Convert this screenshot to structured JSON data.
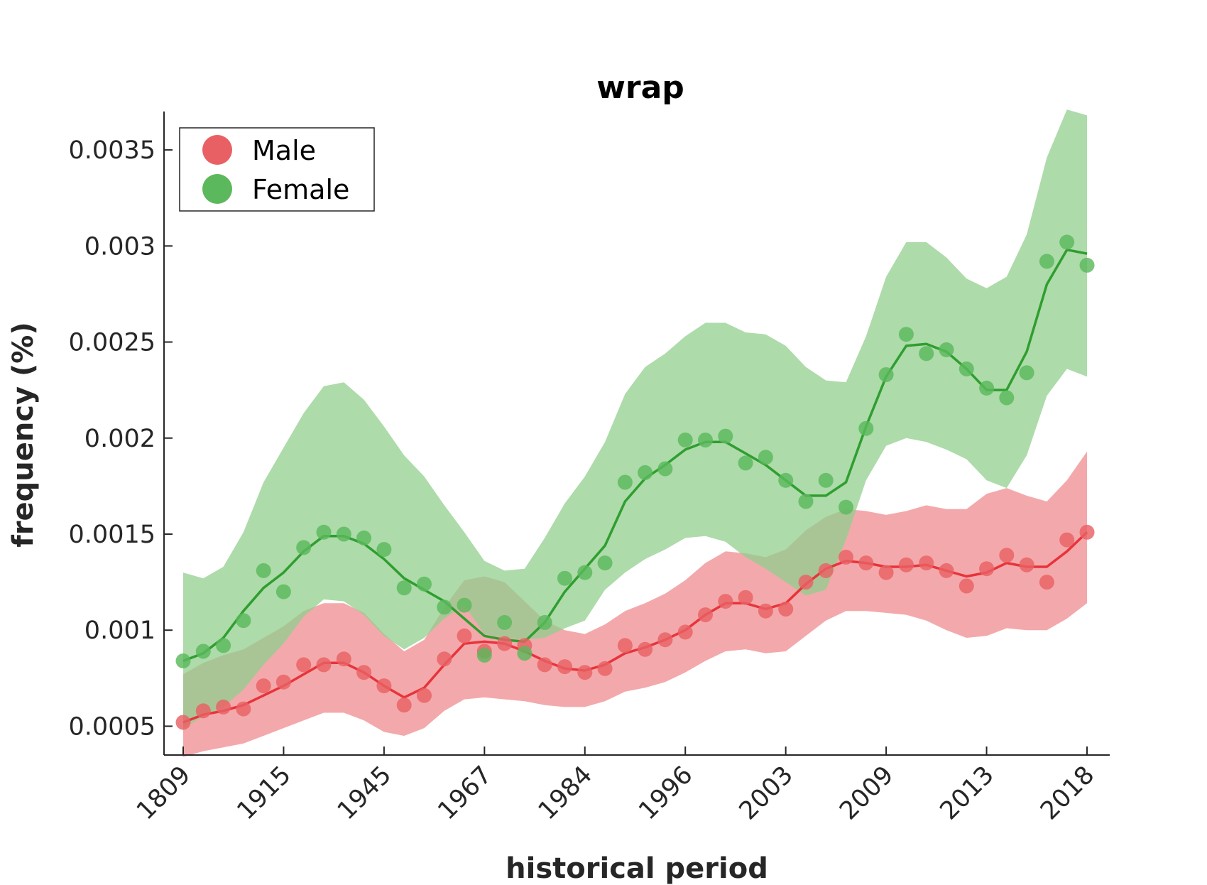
{
  "chart_data": {
    "type": "line",
    "title": "wrap",
    "xlabel": "historical period",
    "ylabel": "frequency (%)",
    "ylim": [
      0.00035,
      0.0037
    ],
    "y_ticks": [
      0.0005,
      0.001,
      0.0015,
      0.002,
      0.0025,
      0.003,
      0.0035
    ],
    "y_tick_labels": [
      "0.0005",
      "0.001",
      "0.0015",
      "0.002",
      "0.0025",
      "0.003",
      "0.0035"
    ],
    "x_tick_labels": [
      "1809",
      "1915",
      "1945",
      "1967",
      "1984",
      "1996",
      "2003",
      "2009",
      "2013",
      "2018"
    ],
    "x_tick_positions": [
      1,
      6,
      11,
      16,
      21,
      26,
      31,
      36,
      41,
      46
    ],
    "xlim": [
      0,
      48
    ],
    "grid": false,
    "legend_position": "top-left",
    "series": [
      {
        "name": "Male",
        "color": "#e8333a",
        "marker_color": "#e96064",
        "band_color": "#ef8c8f",
        "points": [
          0.00052,
          0.00058,
          0.0006,
          0.00059,
          0.00071,
          0.00073,
          0.00082,
          0.00082,
          0.00085,
          0.00078,
          0.00071,
          0.00061,
          0.00066,
          0.00085,
          0.00097,
          0.00089,
          0.00093,
          0.00092,
          0.00082,
          0.00081,
          0.00078,
          0.0008,
          0.00092,
          0.0009,
          0.00095,
          0.00099,
          0.00108,
          0.00115,
          0.00117,
          0.0011,
          0.00111,
          0.00125,
          0.00131,
          0.00138,
          0.00135,
          0.0013,
          0.00134,
          0.00135,
          0.00131,
          0.00123,
          0.00132,
          0.00139,
          0.00134,
          0.00125,
          0.00147,
          0.00151
        ],
        "trend": [
          0.00052,
          0.00056,
          0.00058,
          0.00061,
          0.00066,
          0.00071,
          0.00077,
          0.00083,
          0.00083,
          0.00078,
          0.00071,
          0.00065,
          0.0007,
          0.00082,
          0.00093,
          0.00094,
          0.00093,
          0.00089,
          0.00084,
          0.0008,
          0.00079,
          0.00082,
          0.00088,
          0.00091,
          0.00095,
          0.001,
          0.00108,
          0.00114,
          0.00114,
          0.00111,
          0.00114,
          0.00124,
          0.00132,
          0.00136,
          0.00135,
          0.00133,
          0.00133,
          0.00134,
          0.00131,
          0.00128,
          0.0013,
          0.00135,
          0.00133,
          0.00133,
          0.00141,
          0.00151
        ],
        "upper": [
          0.00077,
          0.00083,
          0.00087,
          0.0009,
          0.00096,
          0.00102,
          0.0011,
          0.00114,
          0.00114,
          0.00109,
          0.00098,
          0.00089,
          0.00095,
          0.00112,
          0.00126,
          0.00128,
          0.00125,
          0.00115,
          0.00105,
          0.001,
          0.00098,
          0.00103,
          0.0011,
          0.00114,
          0.00119,
          0.00126,
          0.00135,
          0.00141,
          0.0014,
          0.00138,
          0.00142,
          0.00152,
          0.00159,
          0.00163,
          0.00162,
          0.0016,
          0.00162,
          0.00165,
          0.00163,
          0.00163,
          0.00171,
          0.00174,
          0.0017,
          0.00167,
          0.00178,
          0.00193
        ],
        "lower": [
          0.00034,
          0.00037,
          0.00039,
          0.00041,
          0.00045,
          0.00049,
          0.00053,
          0.00057,
          0.00057,
          0.00053,
          0.00047,
          0.00045,
          0.00049,
          0.00058,
          0.00064,
          0.00065,
          0.00064,
          0.00063,
          0.00061,
          0.0006,
          0.0006,
          0.00063,
          0.00068,
          0.0007,
          0.00073,
          0.00078,
          0.00084,
          0.00089,
          0.0009,
          0.00088,
          0.00089,
          0.00097,
          0.00105,
          0.0011,
          0.0011,
          0.00109,
          0.00108,
          0.00105,
          0.001,
          0.00096,
          0.00097,
          0.00101,
          0.001,
          0.001,
          0.00106,
          0.00114
        ]
      },
      {
        "name": "Female",
        "color": "#2f9e2f",
        "marker_color": "#5cb85c",
        "band_color": "#92cf8e",
        "points": [
          0.00084,
          0.00089,
          0.00092,
          0.00105,
          0.00131,
          0.0012,
          0.00143,
          0.00151,
          0.0015,
          0.00148,
          0.00142,
          0.00122,
          0.00124,
          0.00112,
          0.00113,
          0.00087,
          0.00104,
          0.00088,
          0.00104,
          0.00127,
          0.0013,
          0.00135,
          0.00177,
          0.00182,
          0.00184,
          0.00199,
          0.00199,
          0.00201,
          0.00187,
          0.0019,
          0.00178,
          0.00167,
          0.00178,
          0.00164,
          0.00205,
          0.00233,
          0.00254,
          0.00244,
          0.00246,
          0.00236,
          0.00226,
          0.00221,
          0.00234,
          0.00292,
          0.00302,
          0.0029
        ],
        "trend": [
          0.00084,
          0.00088,
          0.00096,
          0.0011,
          0.00122,
          0.0013,
          0.00141,
          0.00149,
          0.00149,
          0.00145,
          0.00137,
          0.00127,
          0.00121,
          0.00115,
          0.00106,
          0.00097,
          0.00095,
          0.00094,
          0.00104,
          0.0012,
          0.00132,
          0.00144,
          0.00167,
          0.00179,
          0.00186,
          0.00194,
          0.00198,
          0.00198,
          0.00192,
          0.00186,
          0.00178,
          0.0017,
          0.0017,
          0.00177,
          0.00206,
          0.00232,
          0.00248,
          0.00249,
          0.00245,
          0.00236,
          0.00225,
          0.00225,
          0.00245,
          0.0028,
          0.00298,
          0.00296
        ],
        "upper": [
          0.0013,
          0.00127,
          0.00133,
          0.00151,
          0.00177,
          0.00195,
          0.00213,
          0.00227,
          0.00229,
          0.0022,
          0.00206,
          0.00191,
          0.0018,
          0.00165,
          0.00151,
          0.00136,
          0.00131,
          0.00132,
          0.00148,
          0.00166,
          0.0018,
          0.00198,
          0.00223,
          0.00237,
          0.00244,
          0.00253,
          0.0026,
          0.0026,
          0.00255,
          0.00254,
          0.00248,
          0.00237,
          0.0023,
          0.00229,
          0.00253,
          0.00284,
          0.00302,
          0.00302,
          0.00294,
          0.00283,
          0.00278,
          0.00284,
          0.00306,
          0.00346,
          0.00371,
          0.00368
        ],
        "lower": [
          0.00049,
          0.00055,
          0.0006,
          0.00069,
          0.00082,
          0.00093,
          0.00107,
          0.00116,
          0.00115,
          0.00108,
          0.00097,
          0.0009,
          0.00096,
          0.00106,
          0.00113,
          0.00098,
          0.00096,
          0.00095,
          0.00096,
          0.00101,
          0.00105,
          0.00121,
          0.0013,
          0.00137,
          0.00142,
          0.00148,
          0.00149,
          0.00146,
          0.00138,
          0.00132,
          0.00125,
          0.00118,
          0.00121,
          0.00147,
          0.00178,
          0.00196,
          0.002,
          0.00198,
          0.00194,
          0.00189,
          0.00178,
          0.00174,
          0.00191,
          0.00222,
          0.00236,
          0.00232
        ]
      }
    ]
  }
}
